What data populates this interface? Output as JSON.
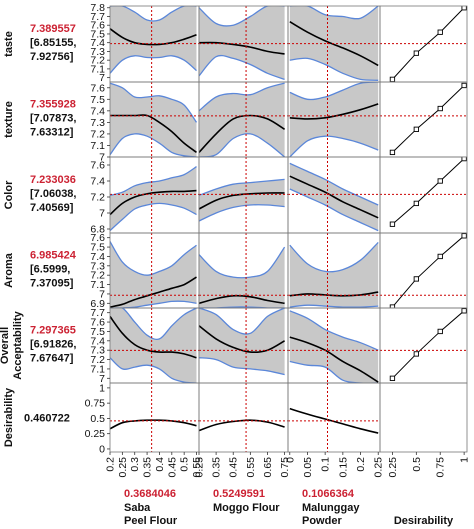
{
  "chart_data": {
    "type": "line",
    "title": "",
    "responses": [
      {
        "name": "taste",
        "value": "7.389557",
        "ci_low": "[6.85155,",
        "ci_high": "7.92756]",
        "ylim": [
          6.95,
          7.82
        ],
        "ticks": [
          "7.8",
          "7.7",
          "7.6",
          "7.5",
          "7.4",
          "7.3",
          "7.2",
          "7.1",
          "7"
        ],
        "tick_values": [
          7.8,
          7.7,
          7.6,
          7.5,
          7.4,
          7.3,
          7.2,
          7.1,
          7.0
        ],
        "desirability_ticks": [
          "0.25",
          "0.5",
          "0.75",
          "1"
        ],
        "desirability_ticks_x": [
          0.25,
          0.5,
          0.75,
          1
        ]
      },
      {
        "name": "texture",
        "value": "7.355928",
        "ci_low": "[7.07873,",
        "ci_high": "7.63312]",
        "ylim": [
          7.0,
          7.65
        ],
        "ticks": [
          "7.6",
          "7.5",
          "7.4",
          "7.3",
          "7.2",
          "7.1",
          "7"
        ],
        "tick_values": [
          7.6,
          7.5,
          7.4,
          7.3,
          7.2,
          7.1,
          7.0
        ]
      },
      {
        "name": "Color",
        "value": "7.233036",
        "ci_low": "[7.06038,",
        "ci_high": "7.40569]",
        "ylim": [
          6.75,
          7.7
        ],
        "ticks": [
          "7.6",
          "7.4",
          "7.2",
          "7",
          "6.8"
        ],
        "tick_values": [
          7.6,
          7.4,
          7.2,
          7.0,
          6.8
        ]
      },
      {
        "name": "Aroma",
        "value": "6.985424",
        "ci_low": "[6.5999,",
        "ci_high": "7.37095]",
        "ylim": [
          6.85,
          7.65
        ],
        "ticks": [
          "7.6",
          "7.5",
          "7.4",
          "7.3",
          "7.2",
          "7.1",
          "7",
          "6.9"
        ],
        "tick_values": [
          7.6,
          7.5,
          7.4,
          7.3,
          7.2,
          7.1,
          7.0,
          6.9
        ]
      },
      {
        "name": "Overall Acceptability",
        "name_lines": [
          "Overall",
          "Acceptability"
        ],
        "value": "7.297365",
        "ci_low": "[6.91826,",
        "ci_high": "7.67647]",
        "ylim": [
          6.95,
          7.75
        ],
        "ticks": [
          "7.7",
          "7.6",
          "7.5",
          "7.4",
          "7.3",
          "7.2",
          "7.1",
          "7"
        ],
        "tick_values": [
          7.7,
          7.6,
          7.5,
          7.4,
          7.3,
          7.2,
          7.1,
          7.0
        ]
      }
    ],
    "desirability": {
      "name": "Desirability",
      "value": "0.460722",
      "ylim": [
        -0.05,
        1.08
      ],
      "ticks": [
        "1",
        "0.75",
        "0.5",
        "0.25",
        "0"
      ],
      "tick_values": [
        1,
        0.75,
        0.5,
        0.25,
        0
      ]
    },
    "factors": [
      {
        "name_lines": [
          "Saba",
          "Peel Flour"
        ],
        "current": "0.3684046",
        "current_value": 0.3684046,
        "xlim": [
          0.2,
          0.56
        ],
        "ticks": [
          "0.2",
          "0.25",
          "0.3",
          "0.35",
          "0.4",
          "0.45",
          "0.5",
          "0.55"
        ],
        "tick_values": [
          0.2,
          0.25,
          0.3,
          0.35,
          0.4,
          0.45,
          0.5,
          0.55
        ]
      },
      {
        "name_lines": [
          "Moggo Flour"
        ],
        "current": "0.5249591",
        "current_value": 0.5249591,
        "xlim": [
          0.25,
          0.77
        ],
        "ticks": [
          "0.25",
          "0.35",
          "0.45",
          "0.55",
          "0.65",
          "0.75"
        ],
        "tick_values": [
          0.25,
          0.35,
          0.45,
          0.55,
          0.65,
          0.75
        ]
      },
      {
        "name_lines": [
          "Malunggay",
          "Powder"
        ],
        "current": "0.1066364",
        "current_value": 0.1066364,
        "xlim": [
          -0.005,
          0.255
        ],
        "ticks": [
          "0",
          "0.05",
          "0.1",
          "0.15",
          "0.2",
          "0.25"
        ],
        "tick_values": [
          0,
          0.05,
          0.1,
          0.15,
          0.2,
          0.25
        ]
      }
    ],
    "desirability_column_label": "Desirability",
    "profiles": [
      [
        {
          "x": [
            0.2,
            0.25,
            0.3,
            0.35,
            0.4,
            0.45,
            0.5,
            0.55
          ],
          "y": [
            7.56,
            7.46,
            7.4,
            7.38,
            7.38,
            7.4,
            7.44,
            7.49
          ],
          "lo": [
            7.05,
            7.2,
            7.25,
            7.23,
            7.23,
            7.25,
            7.2,
            7.08
          ],
          "hi": [
            7.82,
            7.82,
            7.75,
            7.66,
            7.66,
            7.75,
            7.82,
            7.82
          ]
        },
        {
          "x": [
            0.25,
            0.35,
            0.45,
            0.55,
            0.65,
            0.75
          ],
          "y": [
            7.4,
            7.4,
            7.38,
            7.35,
            7.3,
            7.27
          ],
          "lo": [
            7.02,
            7.24,
            7.22,
            7.15,
            7.05,
            6.98
          ],
          "hi": [
            7.8,
            7.62,
            7.6,
            7.7,
            7.82,
            7.82
          ]
        },
        {
          "x": [
            0,
            0.05,
            0.1,
            0.15,
            0.2,
            0.25
          ],
          "y": [
            7.64,
            7.52,
            7.42,
            7.34,
            7.25,
            7.14
          ],
          "lo": [
            7.2,
            7.22,
            7.15,
            7.05,
            6.98,
            6.97
          ],
          "hi": [
            7.82,
            7.82,
            7.72,
            7.7,
            7.68,
            7.82
          ]
        },
        {
          "x": [
            0.25,
            0.5,
            0.75,
            1
          ],
          "y": [
            6.98,
            7.28,
            7.52,
            7.8
          ]
        }
      ],
      [
        {
          "x": [
            0.2,
            0.25,
            0.3,
            0.35,
            0.4,
            0.45,
            0.5,
            0.55
          ],
          "y": [
            7.36,
            7.36,
            7.36,
            7.36,
            7.3,
            7.22,
            7.12,
            7.04
          ],
          "lo": [
            7.02,
            7.16,
            7.2,
            7.18,
            7.12,
            7.04,
            7.01,
            7.0
          ],
          "hi": [
            7.64,
            7.6,
            7.52,
            7.52,
            7.53,
            7.5,
            7.45,
            7.3
          ]
        },
        {
          "x": [
            0.25,
            0.35,
            0.45,
            0.55,
            0.65,
            0.75
          ],
          "y": [
            7.04,
            7.2,
            7.33,
            7.36,
            7.33,
            7.24
          ],
          "lo": [
            7.0,
            7.02,
            7.16,
            7.2,
            7.12,
            7.0
          ],
          "hi": [
            7.4,
            7.52,
            7.55,
            7.54,
            7.6,
            7.64
          ]
        },
        {
          "x": [
            0,
            0.05,
            0.1,
            0.15,
            0.2,
            0.25
          ],
          "y": [
            7.34,
            7.33,
            7.34,
            7.37,
            7.41,
            7.46
          ],
          "lo": [
            7.0,
            7.14,
            7.18,
            7.16,
            7.12,
            7.06
          ],
          "hi": [
            7.56,
            7.5,
            7.52,
            7.58,
            7.64,
            7.65
          ]
        },
        {
          "x": [
            0.25,
            0.5,
            0.75,
            1
          ],
          "y": [
            7.04,
            7.24,
            7.42,
            7.62
          ]
        }
      ],
      [
        {
          "x": [
            0.2,
            0.25,
            0.3,
            0.35,
            0.4,
            0.45,
            0.5,
            0.55
          ],
          "y": [
            6.98,
            7.12,
            7.2,
            7.24,
            7.26,
            7.27,
            7.27,
            7.28
          ],
          "lo": [
            6.78,
            6.92,
            7.05,
            7.1,
            7.12,
            7.1,
            7.06,
            6.98
          ],
          "hi": [
            7.22,
            7.26,
            7.34,
            7.38,
            7.4,
            7.44,
            7.48,
            7.58
          ]
        },
        {
          "x": [
            0.25,
            0.35,
            0.45,
            0.55,
            0.65,
            0.75
          ],
          "y": [
            7.05,
            7.16,
            7.22,
            7.24,
            7.25,
            7.25
          ],
          "lo": [
            6.9,
            7.0,
            7.07,
            7.1,
            7.1,
            7.08
          ],
          "hi": [
            7.22,
            7.3,
            7.36,
            7.38,
            7.4,
            7.42
          ]
        },
        {
          "x": [
            0,
            0.05,
            0.1,
            0.15,
            0.2,
            0.25
          ],
          "y": [
            7.46,
            7.36,
            7.26,
            7.14,
            7.04,
            6.94
          ],
          "lo": [
            7.3,
            7.2,
            7.1,
            6.98,
            6.88,
            6.78
          ],
          "hi": [
            7.62,
            7.52,
            7.42,
            7.3,
            7.2,
            7.1
          ]
        },
        {
          "x": [
            0.25,
            0.5,
            0.75,
            1
          ],
          "y": [
            6.86,
            7.12,
            7.4,
            7.68
          ]
        }
      ],
      [
        {
          "x": [
            0.2,
            0.25,
            0.3,
            0.35,
            0.4,
            0.45,
            0.5,
            0.55
          ],
          "y": [
            6.86,
            6.89,
            6.94,
            6.98,
            7.02,
            7.06,
            7.1,
            7.18
          ],
          "lo": [
            6.85,
            6.85,
            6.86,
            6.88,
            6.9,
            6.92,
            6.92,
            6.9
          ],
          "hi": [
            7.56,
            7.34,
            7.24,
            7.2,
            7.24,
            7.3,
            7.42,
            7.52
          ]
        },
        {
          "x": [
            0.25,
            0.35,
            0.45,
            0.55,
            0.65,
            0.75
          ],
          "y": [
            6.9,
            6.95,
            6.98,
            6.97,
            6.93,
            6.9
          ],
          "lo": [
            6.85,
            6.85,
            6.86,
            6.86,
            6.85,
            6.85
          ],
          "hi": [
            7.42,
            7.24,
            7.18,
            7.18,
            7.24,
            7.5
          ]
        },
        {
          "x": [
            0,
            0.05,
            0.1,
            0.15,
            0.2,
            0.25
          ],
          "y": [
            6.98,
            7.0,
            6.99,
            6.98,
            6.99,
            7.02
          ],
          "lo": [
            6.86,
            6.88,
            6.87,
            6.86,
            6.86,
            6.87
          ],
          "hi": [
            7.52,
            7.32,
            7.24,
            7.26,
            7.36,
            7.55
          ]
        },
        {
          "x": [
            0.25,
            0.5,
            0.75,
            1
          ],
          "y": [
            6.86,
            7.16,
            7.4,
            7.62
          ]
        }
      ],
      [
        {
          "x": [
            0.2,
            0.25,
            0.3,
            0.35,
            0.4,
            0.45,
            0.5,
            0.55
          ],
          "y": [
            7.66,
            7.48,
            7.36,
            7.3,
            7.28,
            7.28,
            7.26,
            7.22
          ],
          "lo": [
            7.22,
            7.1,
            7.12,
            7.14,
            7.1,
            7.0,
            6.96,
            6.95
          ],
          "hi": [
            7.75,
            7.75,
            7.6,
            7.46,
            7.42,
            7.56,
            7.68,
            7.75
          ]
        },
        {
          "x": [
            0.25,
            0.35,
            0.45,
            0.55,
            0.65,
            0.75
          ],
          "y": [
            7.56,
            7.42,
            7.33,
            7.28,
            7.3,
            7.4
          ],
          "lo": [
            7.22,
            7.2,
            7.12,
            7.1,
            7.08,
            7.04
          ],
          "hi": [
            7.75,
            7.68,
            7.52,
            7.48,
            7.66,
            7.75
          ]
        },
        {
          "x": [
            0,
            0.05,
            0.1,
            0.15,
            0.2,
            0.25
          ],
          "y": [
            7.44,
            7.38,
            7.3,
            7.18,
            7.08,
            6.96
          ],
          "lo": [
            7.18,
            7.14,
            7.12,
            6.98,
            6.95,
            6.95
          ],
          "hi": [
            7.72,
            7.64,
            7.52,
            7.44,
            7.38,
            7.3
          ]
        },
        {
          "x": [
            0.25,
            0.5,
            0.75,
            1
          ],
          "y": [
            7.0,
            7.26,
            7.5,
            7.72
          ]
        }
      ]
    ],
    "desirability_profiles": [
      {
        "x": [
          0.2,
          0.25,
          0.3,
          0.35,
          0.4,
          0.45,
          0.5,
          0.55
        ],
        "y": [
          0.33,
          0.43,
          0.46,
          0.47,
          0.47,
          0.46,
          0.43,
          0.38
        ]
      },
      {
        "x": [
          0.25,
          0.35,
          0.45,
          0.55,
          0.65,
          0.75
        ],
        "y": [
          0.3,
          0.4,
          0.45,
          0.47,
          0.44,
          0.36
        ]
      },
      {
        "x": [
          0,
          0.05,
          0.1,
          0.15,
          0.2,
          0.25
        ],
        "y": [
          0.66,
          0.57,
          0.49,
          0.41,
          0.33,
          0.26
        ]
      }
    ],
    "colors": {
      "band": "#c8c8c8",
      "bound": "#5b87d9",
      "line": "#000000",
      "crosshair": "#cc0000",
      "value_text": "#cc2233"
    }
  }
}
